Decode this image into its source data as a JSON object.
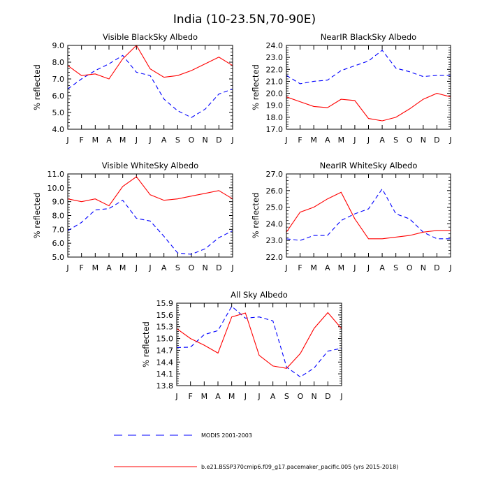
{
  "page_title": "India (10-23.5N,70-90E)",
  "legend": [
    {
      "label": "MODIS 2001-2003",
      "color": "#0000ff",
      "style": "dashed"
    },
    {
      "label": "b.e21.BSSP370cmip6.f09_g17.pacemaker_pacific.005 (yrs 2015-2018)",
      "color": "#ff0000",
      "style": "solid"
    }
  ],
  "chart_data": [
    {
      "type": "line",
      "title": "Visible BlackSky Albedo",
      "ylabel": "% reflected",
      "categories": [
        "J",
        "F",
        "M",
        "A",
        "M",
        "J",
        "J",
        "A",
        "S",
        "O",
        "N",
        "D",
        "J"
      ],
      "ylim": [
        4.0,
        9.0
      ],
      "yticks": [
        "4.0",
        "5.0",
        "6.0",
        "7.0",
        "8.0",
        "9.0"
      ],
      "series": [
        {
          "name": "MODIS 2001-2003",
          "color": "#0000ff",
          "style": "dashed",
          "values": [
            6.4,
            7.0,
            7.5,
            7.9,
            8.4,
            7.4,
            7.2,
            5.8,
            5.1,
            4.7,
            5.2,
            6.1,
            6.4
          ]
        },
        {
          "name": "b.e21.BSSP370cmip6.f09_g17.pacemaker_pacific.005 (yrs 2015-2018)",
          "color": "#ff0000",
          "style": "solid",
          "values": [
            7.8,
            7.2,
            7.3,
            7.0,
            8.2,
            9.0,
            7.6,
            7.1,
            7.2,
            7.5,
            7.9,
            8.3,
            7.8
          ]
        }
      ]
    },
    {
      "type": "line",
      "title": "NearIR BlackSky Albedo",
      "ylabel": "% reflected",
      "categories": [
        "J",
        "F",
        "M",
        "A",
        "M",
        "J",
        "J",
        "A",
        "S",
        "O",
        "N",
        "D",
        "J"
      ],
      "ylim": [
        17.0,
        24.0
      ],
      "yticks": [
        "17.0",
        "18.0",
        "19.0",
        "20.0",
        "21.0",
        "22.0",
        "23.0",
        "24.0"
      ],
      "series": [
        {
          "name": "MODIS 2001-2003",
          "color": "#0000ff",
          "style": "dashed",
          "values": [
            21.5,
            20.8,
            21.0,
            21.1,
            21.9,
            22.3,
            22.7,
            23.6,
            22.1,
            21.8,
            21.4,
            21.5,
            21.5
          ]
        },
        {
          "name": "b.e21.BSSP370cmip6.f09_g17.pacemaker_pacific.005 (yrs 2015-2018)",
          "color": "#ff0000",
          "style": "solid",
          "values": [
            19.7,
            19.3,
            18.9,
            18.8,
            19.5,
            19.4,
            17.9,
            17.7,
            18.0,
            18.7,
            19.5,
            20.0,
            19.7
          ]
        }
      ]
    },
    {
      "type": "line",
      "title": "Visible WhiteSky Albedo",
      "ylabel": "% reflected",
      "categories": [
        "J",
        "F",
        "M",
        "A",
        "M",
        "J",
        "J",
        "A",
        "S",
        "O",
        "N",
        "D",
        "J"
      ],
      "ylim": [
        5.0,
        11.0
      ],
      "yticks": [
        "5.0",
        "6.0",
        "7.0",
        "8.0",
        "9.0",
        "10.0",
        "11.0"
      ],
      "series": [
        {
          "name": "MODIS 2001-2003",
          "color": "#0000ff",
          "style": "dashed",
          "values": [
            6.9,
            7.5,
            8.4,
            8.5,
            9.1,
            7.8,
            7.6,
            6.5,
            5.3,
            5.2,
            5.6,
            6.4,
            6.9
          ]
        },
        {
          "name": "b.e21.BSSP370cmip6.f09_g17.pacemaker_pacific.005 (yrs 2015-2018)",
          "color": "#ff0000",
          "style": "solid",
          "values": [
            9.2,
            9.0,
            9.2,
            8.7,
            10.1,
            10.8,
            9.5,
            9.1,
            9.2,
            9.4,
            9.6,
            9.8,
            9.2
          ]
        }
      ]
    },
    {
      "type": "line",
      "title": "NearIR WhiteSky Albedo",
      "ylabel": "% reflected",
      "categories": [
        "J",
        "F",
        "M",
        "A",
        "M",
        "J",
        "J",
        "A",
        "S",
        "O",
        "N",
        "D",
        "J"
      ],
      "ylim": [
        22.0,
        27.0
      ],
      "yticks": [
        "22.0",
        "23.0",
        "24.0",
        "25.0",
        "26.0",
        "27.0"
      ],
      "series": [
        {
          "name": "MODIS 2001-2003",
          "color": "#0000ff",
          "style": "dashed",
          "values": [
            23.1,
            23.0,
            23.3,
            23.3,
            24.2,
            24.6,
            24.9,
            26.1,
            24.6,
            24.3,
            23.5,
            23.1,
            23.1
          ]
        },
        {
          "name": "b.e21.BSSP370cmip6.f09_g17.pacemaker_pacific.005 (yrs 2015-2018)",
          "color": "#ff0000",
          "style": "solid",
          "values": [
            23.5,
            24.7,
            25.0,
            25.5,
            25.9,
            24.3,
            23.1,
            23.1,
            23.2,
            23.3,
            23.5,
            23.6,
            23.6
          ]
        }
      ]
    },
    {
      "type": "line",
      "title": "All Sky Albedo",
      "ylabel": "% reflected",
      "categories": [
        "J",
        "F",
        "M",
        "A",
        "M",
        "J",
        "J",
        "A",
        "S",
        "O",
        "N",
        "D",
        "J"
      ],
      "ylim": [
        13.8,
        15.9
      ],
      "yticks": [
        "13.8",
        "14.1",
        "14.4",
        "14.7",
        "15.0",
        "15.3",
        "15.6",
        "15.9"
      ],
      "series": [
        {
          "name": "MODIS 2001-2003",
          "color": "#0000ff",
          "style": "dashed",
          "values": [
            14.77,
            14.78,
            15.1,
            15.2,
            15.82,
            15.52,
            15.55,
            15.45,
            14.27,
            14.02,
            14.25,
            14.68,
            14.75
          ]
        },
        {
          "name": "b.e21.BSSP370cmip6.f09_g17.pacemaker_pacific.005 (yrs 2015-2018)",
          "color": "#ff0000",
          "style": "solid",
          "values": [
            15.25,
            15.0,
            14.83,
            14.63,
            15.55,
            15.65,
            14.57,
            14.3,
            14.24,
            14.62,
            15.26,
            15.66,
            15.25
          ]
        }
      ]
    }
  ]
}
